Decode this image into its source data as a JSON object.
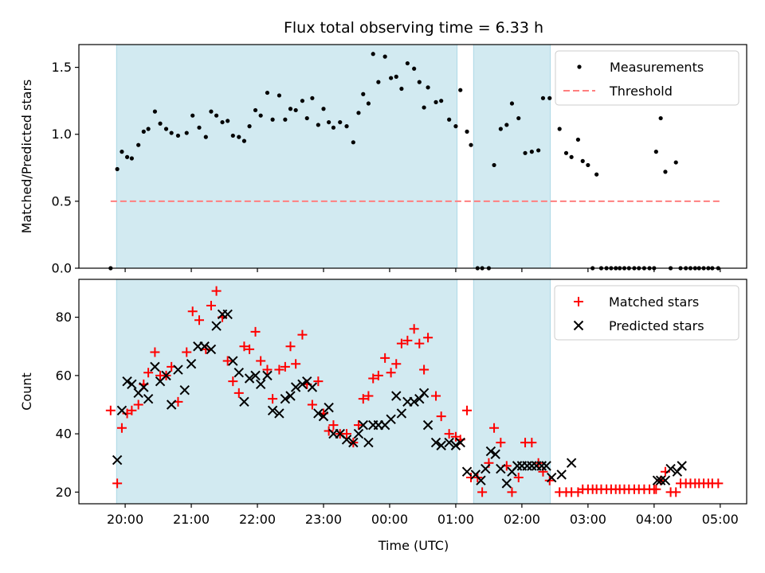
{
  "chart_data": [
    {
      "type": "scatter",
      "title": "Flux total observing time = 6.33 h",
      "ylabel": "Matched/Predicted stars",
      "ylim": [
        0,
        1.67
      ],
      "yticks": [
        "0.0",
        "0.5",
        "1.0",
        "1.5"
      ],
      "x_units": "hours from 20:00 UTC",
      "shaded_intervals": [
        [
          -0.13,
          5.02
        ],
        [
          5.27,
          6.43
        ]
      ],
      "shade_color": "#add8e6",
      "threshold": {
        "name": "Threshold",
        "value": 0.5,
        "x_range": [
          -0.22,
          9.0
        ],
        "color": "#ff7f7f"
      },
      "legend_position": "upper right",
      "series": [
        {
          "name": "Measurements",
          "color": "#000000",
          "marker": "dot",
          "x": [
            -0.22,
            -0.12,
            -0.05,
            0.03,
            0.1,
            0.2,
            0.28,
            0.35,
            0.45,
            0.53,
            0.62,
            0.7,
            0.8,
            0.93,
            1.02,
            1.12,
            1.22,
            1.3,
            1.38,
            1.47,
            1.55,
            1.63,
            1.72,
            1.8,
            1.88,
            1.97,
            2.05,
            2.15,
            2.23,
            2.33,
            2.42,
            2.5,
            2.58,
            2.68,
            2.75,
            2.83,
            2.92,
            3.0,
            3.08,
            3.15,
            3.25,
            3.35,
            3.45,
            3.53,
            3.6,
            3.68,
            3.75,
            3.83,
            3.93,
            4.02,
            4.1,
            4.18,
            4.27,
            4.37,
            4.45,
            4.52,
            4.58,
            4.7,
            4.78,
            4.9,
            5.0,
            5.07,
            5.17,
            5.23,
            5.33,
            5.4,
            5.5,
            5.58,
            5.68,
            5.77,
            5.85,
            5.95,
            6.05,
            6.15,
            6.25,
            6.32,
            6.42,
            6.57,
            6.67,
            6.75,
            6.85,
            6.92,
            7.0,
            7.07,
            7.13,
            7.2,
            7.28,
            7.35,
            7.42,
            7.48,
            7.55,
            7.62,
            7.7,
            7.77,
            7.85,
            7.93,
            8.0,
            8.03,
            8.1,
            8.17,
            8.25,
            8.33,
            8.4,
            8.48,
            8.55,
            8.62,
            8.68,
            8.75,
            8.82,
            8.88,
            8.97
          ],
          "y": [
            0.0,
            0.74,
            0.87,
            0.83,
            0.82,
            0.92,
            1.02,
            1.04,
            1.17,
            1.08,
            1.04,
            1.01,
            0.99,
            1.01,
            1.14,
            1.05,
            0.98,
            1.17,
            1.14,
            1.09,
            1.1,
            0.99,
            0.98,
            0.95,
            1.06,
            1.18,
            1.14,
            1.31,
            1.11,
            1.29,
            1.11,
            1.19,
            1.18,
            1.25,
            1.12,
            1.27,
            1.07,
            1.19,
            1.09,
            1.05,
            1.09,
            1.06,
            0.94,
            1.16,
            1.3,
            1.23,
            1.6,
            1.39,
            1.58,
            1.42,
            1.43,
            1.34,
            1.53,
            1.49,
            1.39,
            1.2,
            1.35,
            1.24,
            1.25,
            1.11,
            1.06,
            1.33,
            1.02,
            0.92,
            0.0,
            0.0,
            0.0,
            0.77,
            1.04,
            1.07,
            1.23,
            1.12,
            0.86,
            0.87,
            0.88,
            1.27,
            1.27,
            1.04,
            0.86,
            0.83,
            0.96,
            0.8,
            0.77,
            0.0,
            0.7,
            0.0,
            0.0,
            0.0,
            0.0,
            0.0,
            0.0,
            0.0,
            0.0,
            0.0,
            0.0,
            0.0,
            0.0,
            0.87,
            1.12,
            0.72,
            0.0,
            0.79,
            0.0,
            0.0,
            0.0,
            0.0,
            0.0,
            0.0,
            0.0,
            0.0,
            0.0
          ]
        }
      ]
    },
    {
      "type": "scatter",
      "xlabel": "Time (UTC)",
      "ylabel": "Count",
      "ylim": [
        16,
        93
      ],
      "xlim": [
        -0.7,
        9.4
      ],
      "yticks": [
        "20",
        "40",
        "60",
        "80"
      ],
      "xticks": [
        "20:00",
        "21:00",
        "22:00",
        "23:00",
        "00:00",
        "01:00",
        "02:00",
        "03:00",
        "04:00",
        "05:00"
      ],
      "x_units": "hours from 20:00 UTC",
      "shaded_intervals": [
        [
          -0.13,
          5.02
        ],
        [
          5.27,
          6.43
        ]
      ],
      "shade_color": "#add8e6",
      "legend_position": "upper right",
      "series": [
        {
          "name": "Matched stars",
          "color": "#ff0000",
          "marker": "plus",
          "x": [
            -0.22,
            -0.12,
            -0.05,
            0.03,
            0.1,
            0.2,
            0.28,
            0.35,
            0.45,
            0.53,
            0.62,
            0.7,
            0.8,
            0.93,
            1.02,
            1.12,
            1.22,
            1.3,
            1.38,
            1.47,
            1.55,
            1.63,
            1.72,
            1.8,
            1.88,
            1.97,
            2.05,
            2.15,
            2.23,
            2.33,
            2.42,
            2.5,
            2.58,
            2.68,
            2.75,
            2.83,
            2.92,
            3.0,
            3.08,
            3.15,
            3.25,
            3.35,
            3.45,
            3.53,
            3.6,
            3.68,
            3.75,
            3.83,
            3.93,
            4.02,
            4.1,
            4.18,
            4.27,
            4.37,
            4.45,
            4.52,
            4.58,
            4.7,
            4.78,
            4.9,
            5.0,
            5.07,
            5.17,
            5.23,
            5.33,
            5.4,
            5.5,
            5.58,
            5.68,
            5.77,
            5.85,
            5.95,
            6.05,
            6.15,
            6.25,
            6.32,
            6.42,
            6.57,
            6.67,
            6.75,
            6.85,
            6.92,
            7.0,
            7.07,
            7.13,
            7.2,
            7.28,
            7.35,
            7.42,
            7.48,
            7.55,
            7.62,
            7.7,
            7.77,
            7.85,
            7.93,
            8.0,
            8.03,
            8.1,
            8.17,
            8.25,
            8.33,
            8.4,
            8.48,
            8.55,
            8.62,
            8.68,
            8.75,
            8.82,
            8.88,
            8.97
          ],
          "y": [
            48,
            23,
            42,
            47,
            48,
            50,
            57,
            61,
            68,
            60,
            60,
            63,
            51,
            68,
            82,
            79,
            69,
            84,
            89,
            80,
            65,
            58,
            54,
            70,
            69,
            75,
            65,
            62,
            52,
            62,
            63,
            70,
            64,
            74,
            57,
            50,
            58,
            47,
            41,
            43,
            40,
            40,
            37,
            43,
            52,
            53,
            59,
            60,
            66,
            61,
            64,
            71,
            72,
            76,
            71,
            62,
            73,
            53,
            46,
            40,
            39,
            38,
            48,
            25,
            25,
            20,
            30,
            42,
            37,
            29,
            20,
            25,
            37,
            37,
            30,
            27,
            24,
            20,
            20,
            20,
            20,
            21,
            21,
            21,
            21,
            21,
            21,
            21,
            21,
            21,
            21,
            21,
            21,
            21,
            21,
            21,
            21,
            21,
            24,
            27,
            20,
            20,
            23,
            23,
            23,
            23,
            23,
            23,
            23,
            23,
            23
          ]
        },
        {
          "name": "Predicted stars",
          "color": "#000000",
          "marker": "cross",
          "x": [
            -0.12,
            -0.05,
            0.03,
            0.1,
            0.2,
            0.28,
            0.35,
            0.45,
            0.53,
            0.62,
            0.7,
            0.8,
            0.9,
            1.0,
            1.1,
            1.2,
            1.3,
            1.38,
            1.47,
            1.55,
            1.63,
            1.72,
            1.8,
            1.88,
            1.97,
            2.05,
            2.15,
            2.23,
            2.33,
            2.42,
            2.5,
            2.58,
            2.68,
            2.75,
            2.83,
            2.92,
            3.0,
            3.08,
            3.15,
            3.25,
            3.35,
            3.45,
            3.53,
            3.6,
            3.68,
            3.75,
            3.83,
            3.93,
            4.02,
            4.1,
            4.18,
            4.27,
            4.37,
            4.45,
            4.52,
            4.58,
            4.7,
            4.78,
            4.9,
            5.0,
            5.07,
            5.17,
            5.3,
            5.38,
            5.45,
            5.53,
            5.6,
            5.68,
            5.77,
            5.85,
            5.93,
            6.0,
            6.08,
            6.15,
            6.22,
            6.3,
            6.37,
            6.45,
            6.6,
            6.75,
            8.05,
            8.1,
            8.17,
            8.25,
            8.35,
            8.42
          ],
          "y": [
            31,
            48,
            58,
            57,
            54,
            56,
            52,
            63,
            58,
            60,
            50,
            62,
            55,
            64,
            70,
            70,
            69,
            77,
            81,
            81,
            65,
            61,
            51,
            59,
            60,
            57,
            60,
            48,
            47,
            52,
            53,
            56,
            57,
            58,
            56,
            47,
            46,
            49,
            40,
            40,
            38,
            37,
            40,
            43,
            37,
            43,
            43,
            43,
            45,
            53,
            47,
            51,
            51,
            52,
            54,
            43,
            37,
            36,
            37,
            36,
            37,
            27,
            26,
            24,
            28,
            34,
            33,
            28,
            23,
            27,
            29,
            29,
            29,
            29,
            29,
            29,
            29,
            25,
            26,
            30,
            24,
            24,
            24,
            28,
            27,
            29
          ]
        }
      ]
    }
  ]
}
